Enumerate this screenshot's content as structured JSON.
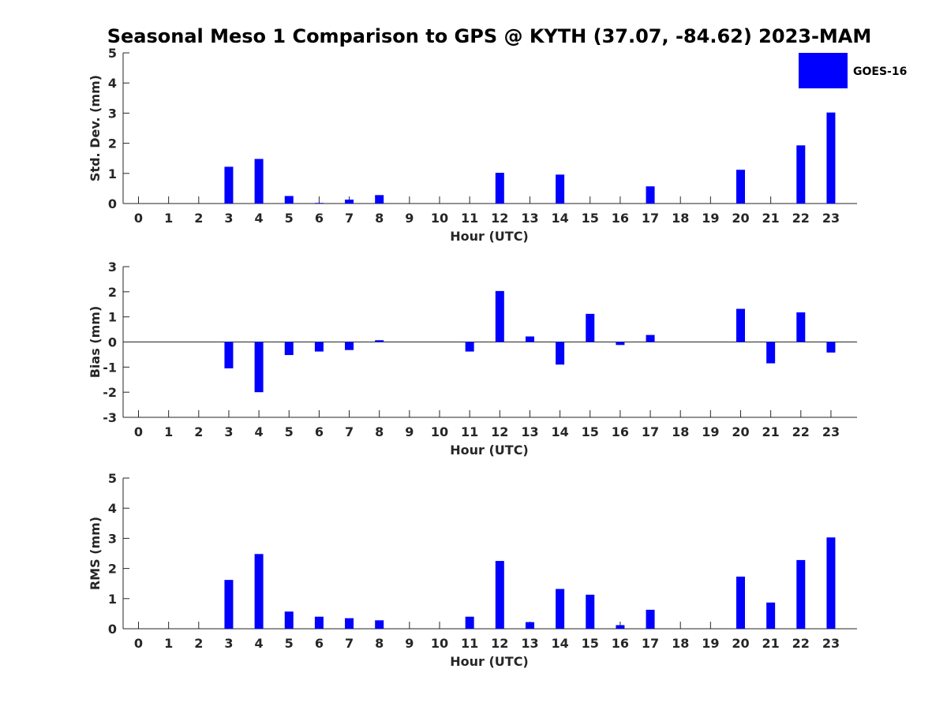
{
  "title": "Seasonal Meso 1 Comparison to GPS @ KYTH (37.07, -84.62) 2023-MAM",
  "legend": {
    "label": "GOES-16",
    "color": "#0000ff",
    "placement": "top-right"
  },
  "chart_data": [
    {
      "type": "bar",
      "xlabel": "Hour (UTC)",
      "ylabel": "Std. Dev. (mm)",
      "ylim": [
        0,
        5
      ],
      "yticks": [
        0,
        1,
        2,
        3,
        4,
        5
      ],
      "categories": [
        "0",
        "1",
        "2",
        "3",
        "4",
        "5",
        "6",
        "7",
        "8",
        "9",
        "10",
        "11",
        "12",
        "13",
        "14",
        "15",
        "16",
        "17",
        "18",
        "19",
        "20",
        "21",
        "22",
        "23"
      ],
      "series": [
        {
          "name": "GOES-16",
          "values": [
            0,
            0,
            0,
            1.22,
            1.48,
            0.25,
            0.02,
            0.13,
            0.28,
            0,
            0,
            0,
            1.02,
            0,
            0.96,
            0,
            0,
            0.57,
            0,
            0,
            1.12,
            0,
            1.93,
            3.02
          ]
        }
      ]
    },
    {
      "type": "bar",
      "xlabel": "Hour (UTC)",
      "ylabel": "Bias (mm)",
      "ylim": [
        -3,
        3
      ],
      "yticks": [
        -3,
        -2,
        -1,
        0,
        1,
        2,
        3
      ],
      "categories": [
        "0",
        "1",
        "2",
        "3",
        "4",
        "5",
        "6",
        "7",
        "8",
        "9",
        "10",
        "11",
        "12",
        "13",
        "14",
        "15",
        "16",
        "17",
        "18",
        "19",
        "20",
        "21",
        "22",
        "23"
      ],
      "series": [
        {
          "name": "GOES-16",
          "values": [
            0,
            0,
            0,
            -1.05,
            -2.0,
            -0.52,
            -0.38,
            -0.32,
            0.07,
            0,
            0,
            -0.38,
            2.03,
            0.22,
            -0.9,
            1.12,
            -0.12,
            0.28,
            0,
            0,
            1.32,
            -0.85,
            1.18,
            -0.42
          ]
        }
      ]
    },
    {
      "type": "bar",
      "xlabel": "Hour (UTC)",
      "ylabel": "RMS (mm)",
      "ylim": [
        0,
        5
      ],
      "yticks": [
        0,
        1,
        2,
        3,
        4,
        5
      ],
      "categories": [
        "0",
        "1",
        "2",
        "3",
        "4",
        "5",
        "6",
        "7",
        "8",
        "9",
        "10",
        "11",
        "12",
        "13",
        "14",
        "15",
        "16",
        "17",
        "18",
        "19",
        "20",
        "21",
        "22",
        "23"
      ],
      "series": [
        {
          "name": "GOES-16",
          "values": [
            0,
            0,
            0,
            1.62,
            2.48,
            0.57,
            0.4,
            0.35,
            0.28,
            0,
            0,
            0.4,
            2.25,
            0.22,
            1.32,
            1.13,
            0.12,
            0.63,
            0,
            0,
            1.73,
            0.87,
            2.28,
            3.03
          ]
        }
      ]
    }
  ]
}
